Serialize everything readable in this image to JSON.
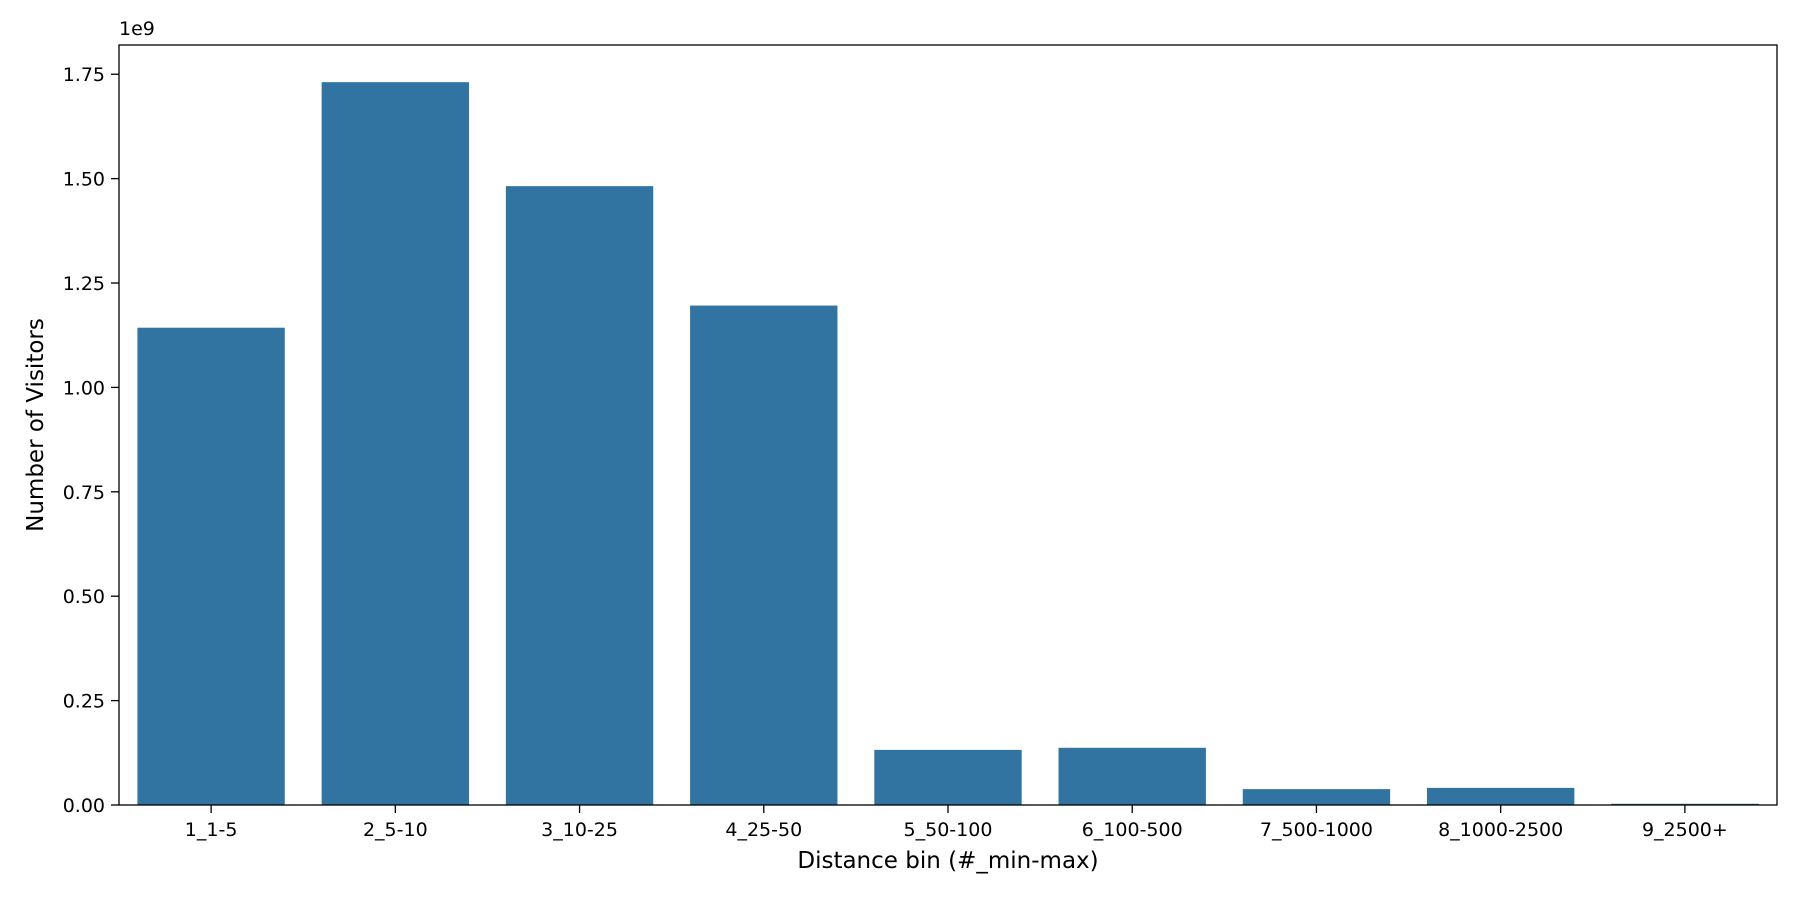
{
  "chart_data": {
    "type": "bar",
    "title": "",
    "xlabel": "Distance bin (#_min-max)",
    "ylabel": "Number of Visitors",
    "y_offset_label": "1e9",
    "categories": [
      "1_1-5",
      "2_5-10",
      "3_10-25",
      "4_25-50",
      "5_50-100",
      "6_100-500",
      "7_500-1000",
      "8_1000-2500",
      "9_2500+"
    ],
    "values": [
      1.143,
      1.731,
      1.482,
      1.196,
      0.132,
      0.137,
      0.038,
      0.041,
      0.003
    ],
    "value_multiplier": 1000000000,
    "ylim": [
      0,
      1.82
    ],
    "yticks": [
      "0.00",
      "0.25",
      "0.50",
      "0.75",
      "1.00",
      "1.25",
      "1.50",
      "1.75"
    ],
    "bar_color": "#3274a1",
    "grid": false,
    "legend": "none"
  }
}
